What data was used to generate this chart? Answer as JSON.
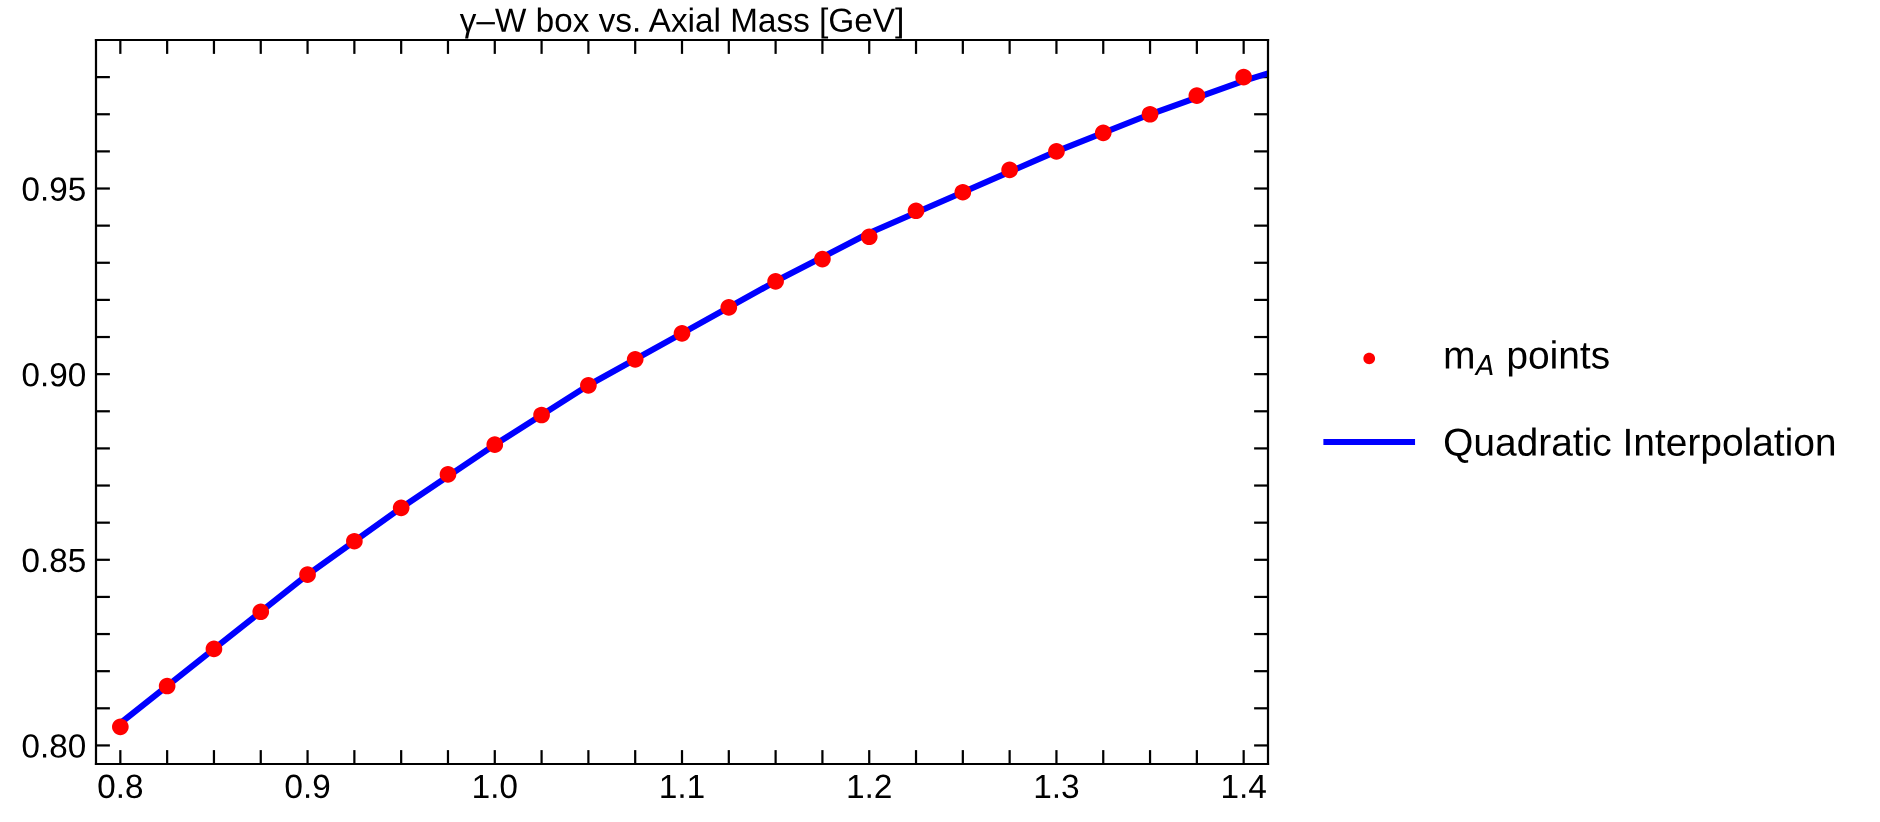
{
  "chart_data": {
    "type": "scatter",
    "title": "γ–W box vs. Axial Mass [GeV]",
    "xlim": [
      0.787,
      1.413
    ],
    "ylim": [
      0.795,
      0.99
    ],
    "xticks": [
      0.8,
      {
        "value": 0.825,
        "label": null
      },
      {
        "value": 0.85,
        "label": null
      },
      {
        "value": 0.875,
        "label": null
      },
      0.9,
      {
        "value": 0.925,
        "label": null
      },
      {
        "value": 0.95,
        "label": null
      },
      {
        "value": 0.975,
        "label": null
      },
      {
        "value": 1.0,
        "label": "1.0"
      },
      {
        "value": 1.025,
        "label": null
      },
      {
        "value": 1.05,
        "label": null
      },
      {
        "value": 1.075,
        "label": null
      },
      1.1,
      {
        "value": 1.125,
        "label": null
      },
      {
        "value": 1.15,
        "label": null
      },
      {
        "value": 1.175,
        "label": null
      },
      1.2,
      {
        "value": 1.225,
        "label": null
      },
      {
        "value": 1.25,
        "label": null
      },
      {
        "value": 1.275,
        "label": null
      },
      1.3,
      {
        "value": 1.325,
        "label": null
      },
      {
        "value": 1.35,
        "label": null
      },
      {
        "value": 1.375,
        "label": null
      },
      1.4
    ],
    "yticks": [
      {
        "value": 0.8,
        "label": "0.80"
      },
      {
        "value": 0.81,
        "label": null
      },
      {
        "value": 0.82,
        "label": null
      },
      {
        "value": 0.83,
        "label": null
      },
      {
        "value": 0.84,
        "label": null
      },
      0.85,
      {
        "value": 0.86,
        "label": null
      },
      {
        "value": 0.87,
        "label": null
      },
      {
        "value": 0.88,
        "label": null
      },
      {
        "value": 0.89,
        "label": null
      },
      {
        "value": 0.9,
        "label": "0.90"
      },
      {
        "value": 0.91,
        "label": null
      },
      {
        "value": 0.92,
        "label": null
      },
      {
        "value": 0.93,
        "label": null
      },
      {
        "value": 0.94,
        "label": null
      },
      0.95,
      {
        "value": 0.96,
        "label": null
      },
      {
        "value": 0.97,
        "label": null
      },
      {
        "value": 0.98,
        "label": null
      }
    ],
    "grid": false,
    "legend": "right",
    "series": [
      {
        "name": "m$_{A}$ points",
        "marker": "circle",
        "color": "#ff0000",
        "x": [
          0.8,
          0.825,
          0.85,
          0.875,
          0.9,
          0.925,
          0.95,
          0.975,
          1.0,
          1.025,
          1.05,
          1.075,
          1.1,
          1.125,
          1.15,
          1.175,
          1.2,
          1.225,
          1.25,
          1.275,
          1.3,
          1.325,
          1.35,
          1.375,
          1.4
        ],
        "values": [
          0.805,
          0.816,
          0.826,
          0.836,
          0.846,
          0.855,
          0.864,
          0.873,
          0.881,
          0.889,
          0.897,
          0.904,
          0.911,
          0.918,
          0.925,
          0.931,
          0.937,
          0.944,
          0.949,
          0.955,
          0.96,
          0.965,
          0.97,
          0.975,
          0.98
        ]
      },
      {
        "name": "Quadratic Interpolation",
        "type": "line",
        "marker": "none",
        "line_style": "solid",
        "color": "#0000ff",
        "x": [
          0.8,
          0.85,
          0.9,
          0.95,
          1.0,
          1.05,
          1.1,
          1.15,
          1.2,
          1.25,
          1.3,
          1.35,
          1.4,
          1.413
        ],
        "values": [
          0.806,
          0.826,
          0.846,
          0.864,
          0.881,
          0.897,
          0.911,
          0.925,
          0.938,
          0.949,
          0.96,
          0.97,
          0.979,
          0.981
        ]
      }
    ]
  }
}
